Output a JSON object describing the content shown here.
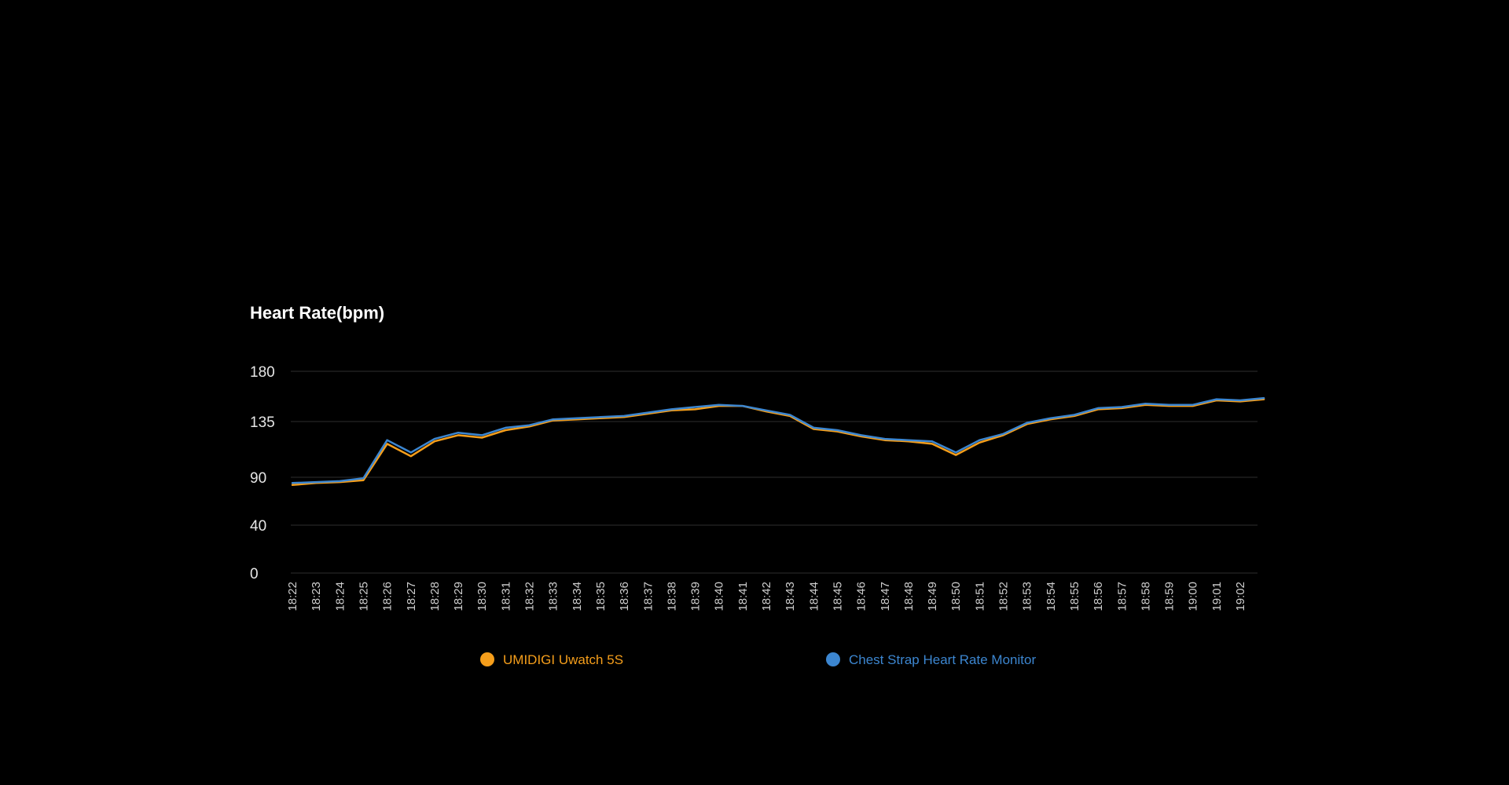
{
  "chart_data": {
    "type": "line",
    "title": "Heart Rate(bpm)",
    "xlabel": "",
    "ylabel": "",
    "yticks": [
      0,
      40,
      90,
      135,
      180
    ],
    "ylim": [
      0,
      180
    ],
    "grid": true,
    "legend_position": "bottom",
    "categories": [
      "18:22",
      "18:23",
      "18:24",
      "18:25",
      "18:26",
      "18:27",
      "18:28",
      "18:29",
      "18:30",
      "18:31",
      "18:32",
      "18:33",
      "18:34",
      "18:35",
      "18:36",
      "18:37",
      "18:38",
      "18:39",
      "18:40",
      "18:41",
      "18:42",
      "18:43",
      "18:44",
      "18:45",
      "18:46",
      "18:47",
      "18:48",
      "18:49",
      "18:50",
      "18:51",
      "18:52",
      "18:53",
      "18:54",
      "18:55",
      "18:56",
      "18:57",
      "18:58",
      "18:59",
      "19:00",
      "19:01",
      "19:02"
    ],
    "x": [
      "18:22",
      "18:23",
      "18:24",
      "18:25",
      "18:26",
      "18:27",
      "18:28",
      "18:29",
      "18:30",
      "18:31",
      "18:32",
      "18:33",
      "18:34",
      "18:35",
      "18:36",
      "18:37",
      "18:38",
      "18:39",
      "18:40",
      "18:41",
      "18:42",
      "18:43",
      "18:44",
      "18:45",
      "18:46",
      "18:47",
      "18:48",
      "18:49",
      "18:50",
      "18:51",
      "18:52",
      "18:53",
      "18:54",
      "18:55",
      "18:56",
      "18:57",
      "18:58",
      "18:59",
      "19:00",
      "19:01",
      "19:02",
      "19:02:30"
    ],
    "series": [
      {
        "name": "UMIDIGI Uwatch 5S",
        "color": "#f59e1b",
        "values": [
          82,
          84,
          85,
          87,
          117,
          107,
          119,
          124,
          122,
          128,
          131,
          136,
          137,
          138,
          139,
          142,
          145,
          146,
          149,
          149,
          144,
          140,
          129,
          127,
          123,
          120,
          119,
          117,
          108,
          118,
          124,
          133,
          137,
          140,
          146,
          147,
          150,
          149,
          149,
          154,
          153,
          155
        ]
      },
      {
        "name": "Chest Strap Heart Rate Monitor",
        "color": "#3c86d0",
        "values": [
          84,
          85,
          86,
          89,
          120,
          110,
          121,
          126,
          124,
          130,
          132,
          137,
          138,
          139,
          140,
          143,
          146,
          148,
          150,
          149,
          145,
          141,
          130,
          128,
          124,
          121,
          120,
          119,
          110,
          120,
          125,
          134,
          138,
          141,
          147,
          148,
          151,
          150,
          150,
          155,
          154,
          156
        ]
      }
    ]
  }
}
